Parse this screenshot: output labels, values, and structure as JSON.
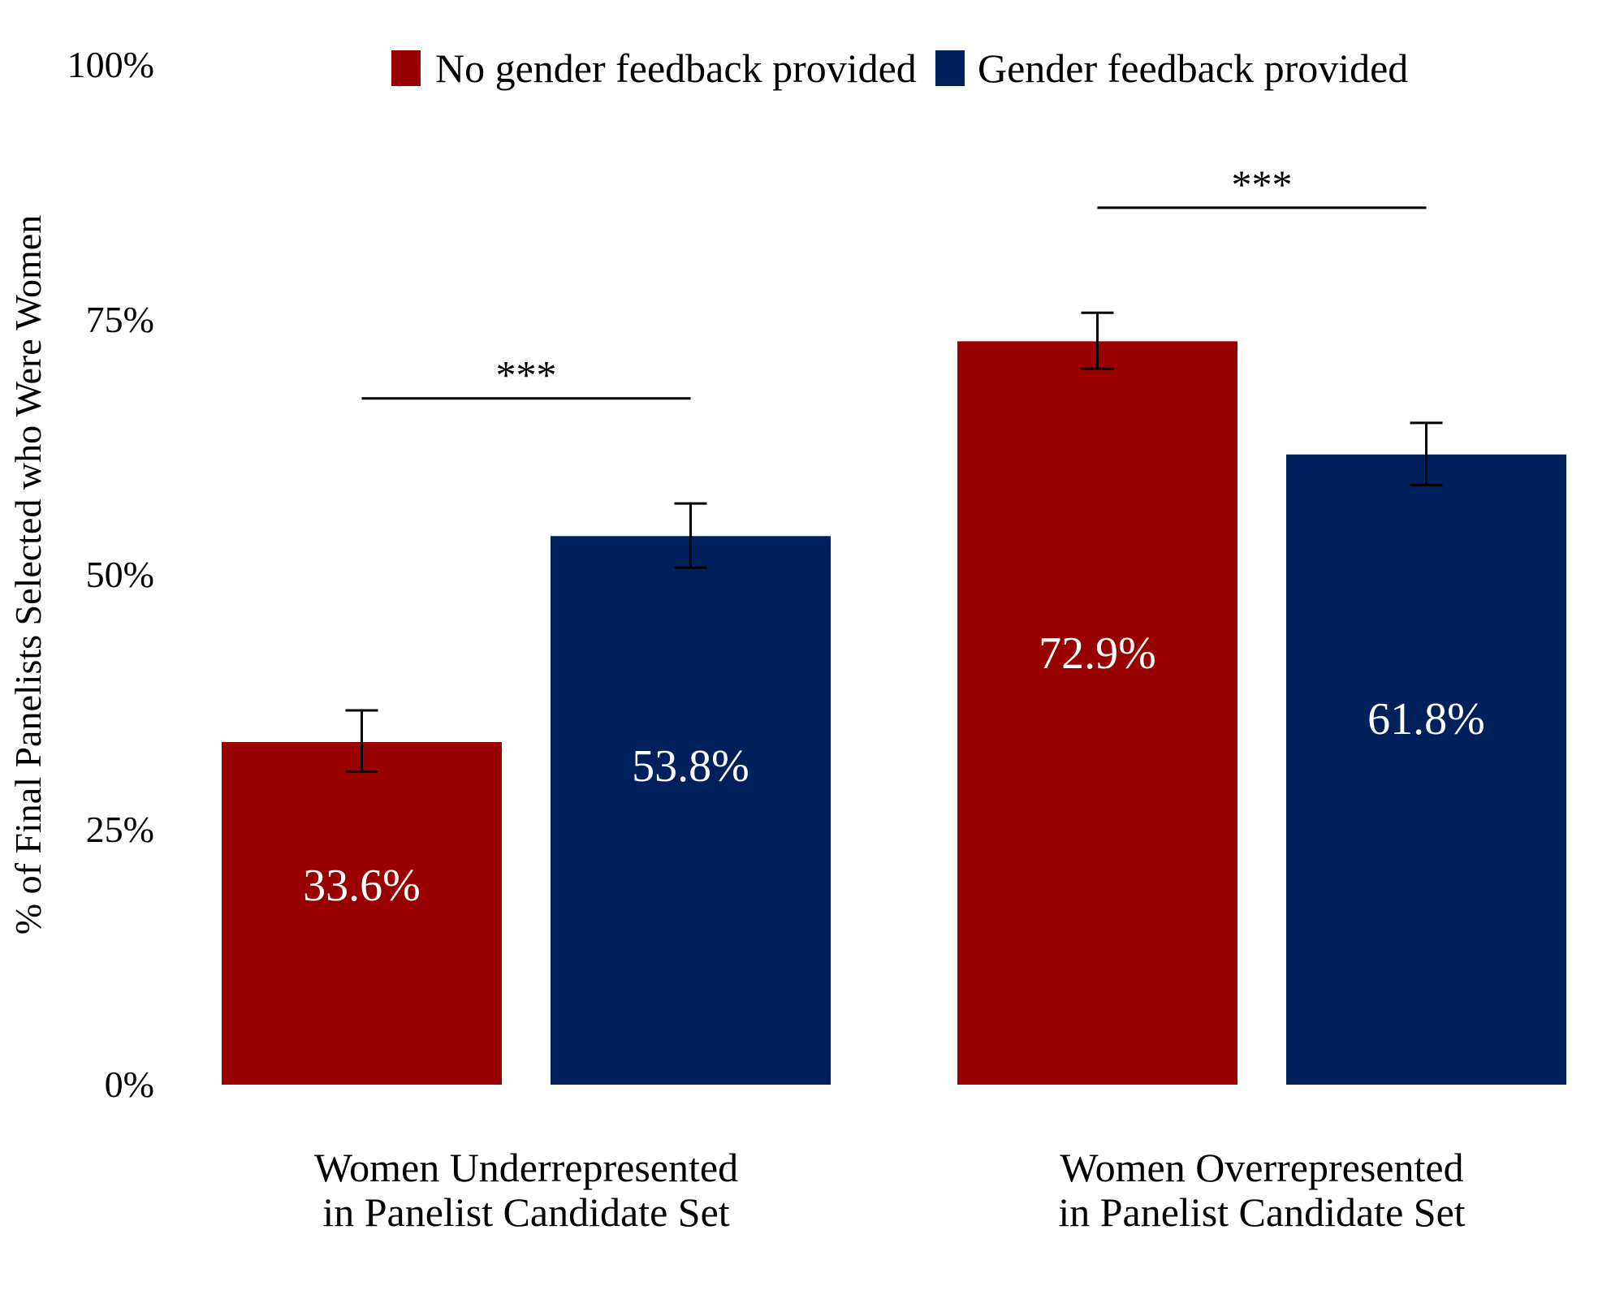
{
  "chart_data": {
    "type": "bar",
    "ylabel": "% of Final Panelists Selected who Were Women",
    "ylim": [
      0,
      100
    ],
    "yticks": [
      0,
      25,
      50,
      75,
      100
    ],
    "ytick_labels": [
      "0%",
      "25%",
      "50%",
      "75%",
      "100%"
    ],
    "grid": false,
    "legend_position": "top",
    "categories": [
      {
        "line1": "Women Underrepresented",
        "line2": "in Panelist Candidate Set"
      },
      {
        "line1": "Women Overrepresented",
        "line2": "in Panelist Candidate Set"
      }
    ],
    "series": [
      {
        "name": "No gender feedback provided",
        "color": "#990000",
        "values": [
          33.6,
          72.9
        ],
        "labels": [
          "33.6%",
          "72.9%"
        ],
        "err_low": [
          30.7,
          70.2
        ],
        "err_high": [
          36.7,
          75.7
        ]
      },
      {
        "name": "Gender feedback provided",
        "color": "#00205b",
        "values": [
          53.8,
          61.8
        ],
        "labels": [
          "53.8%",
          "61.8%"
        ],
        "err_low": [
          50.7,
          58.8
        ],
        "err_high": [
          57.0,
          64.9
        ]
      }
    ],
    "significance": [
      {
        "category": 0,
        "y": 67.3,
        "label": "***"
      },
      {
        "category": 1,
        "y": 86.0,
        "label": "***"
      }
    ]
  }
}
